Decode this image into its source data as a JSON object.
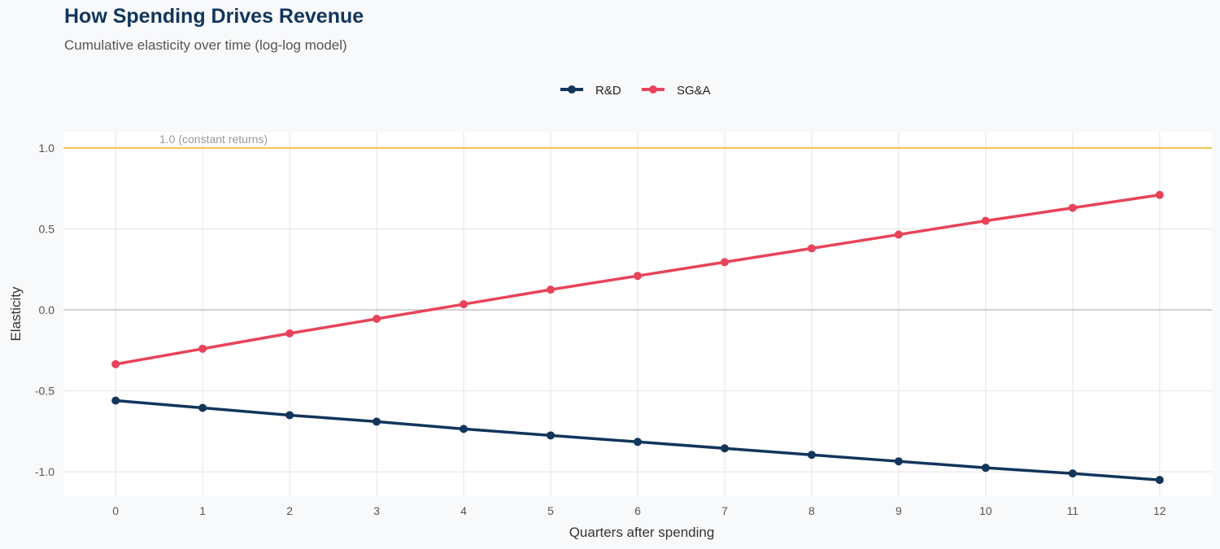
{
  "chart_data": {
    "type": "line",
    "title": "How Spending Drives Revenue",
    "subtitle": "Cumulative elasticity over time (log-log model)",
    "xlabel": "Quarters after spending",
    "ylabel": "Elasticity",
    "x": [
      0,
      1,
      2,
      3,
      4,
      5,
      6,
      7,
      8,
      9,
      10,
      11,
      12
    ],
    "xlim": [
      -0.6,
      12.6
    ],
    "ylim": [
      -1.15,
      1.1
    ],
    "yticks": [
      1.0,
      0.5,
      0.0,
      -0.5,
      -1.0
    ],
    "ytick_labels": [
      "1.0",
      "0.5",
      "0.0",
      "-0.5",
      "-1.0"
    ],
    "grid": true,
    "legend_position": "top",
    "series": [
      {
        "name": "R&D",
        "color": "#12355b",
        "values": [
          -0.56,
          -0.605,
          -0.65,
          -0.69,
          -0.735,
          -0.775,
          -0.815,
          -0.855,
          -0.895,
          -0.935,
          -0.975,
          -1.01,
          -1.05
        ]
      },
      {
        "name": "SG&A",
        "color": "#e8435a",
        "values": [
          -0.335,
          -0.24,
          -0.145,
          -0.055,
          0.035,
          0.125,
          0.21,
          0.295,
          0.38,
          0.465,
          0.55,
          0.63,
          0.71
        ]
      }
    ],
    "reference_line": {
      "y": 1.0,
      "label": "1.0 (constant returns)",
      "color": "#f2c14e"
    }
  }
}
